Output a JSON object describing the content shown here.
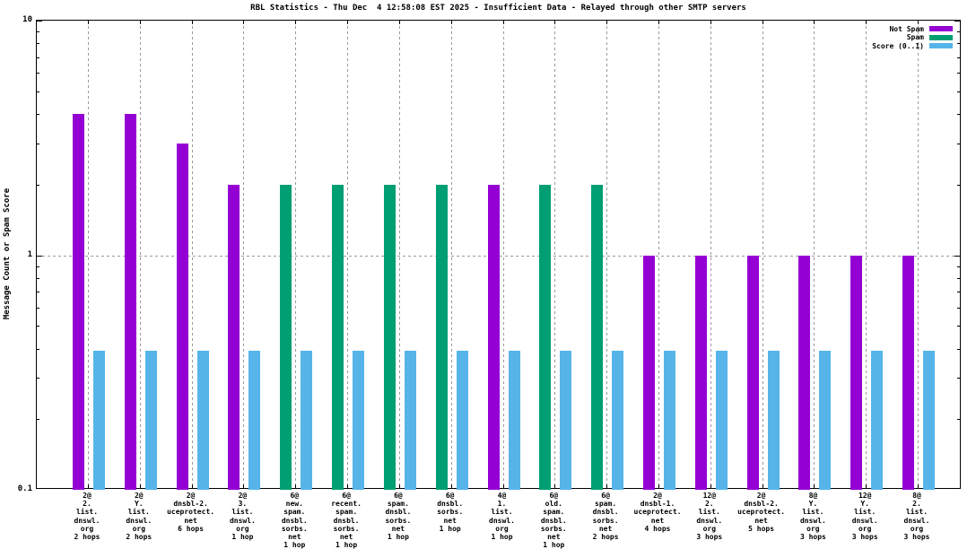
{
  "colors": {
    "not_spam": "#9400d3",
    "spam": "#009e73",
    "score": "#56b4e9",
    "grid": "#9a9a9a",
    "axis": "#000000",
    "background": "#ffffff"
  },
  "chart_data": {
    "type": "bar",
    "title": "RBL Statistics - Thu Dec  4 12:58:08 EST 2025 - Insufficient Data - Relayed through other SMTP servers",
    "xlabel": "",
    "ylabel": "Message Count or Spam Score",
    "yscale": "log",
    "ylim": [
      0.1,
      10
    ],
    "yticks": [
      10,
      1,
      0.1
    ],
    "ytick_labels": [
      "10",
      "1",
      "0.1"
    ],
    "grid_horizontal_values": [
      1
    ],
    "grid_vertical": "at each category center",
    "legend_position": "top-right",
    "legend": [
      {
        "name": "not-spam",
        "label": "Not Spam",
        "color": "#9400d3"
      },
      {
        "name": "spam",
        "label": "Spam",
        "color": "#009e73"
      },
      {
        "name": "score",
        "label": "Score (0..1)",
        "color": "#56b4e9"
      }
    ],
    "categories": [
      {
        "label_lines": [
          "2@",
          "2.",
          "list.",
          "dnswl.",
          "org",
          "2 hops"
        ],
        "series": "not_spam",
        "count": 4,
        "score": 0.39
      },
      {
        "label_lines": [
          "2@",
          "Y.",
          "list.",
          "dnswl.",
          "org",
          "2 hops"
        ],
        "series": "not_spam",
        "count": 4,
        "score": 0.39
      },
      {
        "label_lines": [
          "2@",
          "dnsbl-2.",
          "uceprotect.",
          "net",
          "6 hops"
        ],
        "series": "not_spam",
        "count": 3,
        "score": 0.39
      },
      {
        "label_lines": [
          "2@",
          "3.",
          "list.",
          "dnswl.",
          "org",
          "1 hop"
        ],
        "series": "not_spam",
        "count": 2,
        "score": 0.39
      },
      {
        "label_lines": [
          "6@",
          "new.",
          "spam.",
          "dnsbl.",
          "sorbs.",
          "net",
          "1 hop"
        ],
        "series": "spam",
        "count": 2,
        "score": 0.39
      },
      {
        "label_lines": [
          "6@",
          "recent.",
          "spam.",
          "dnsbl.",
          "sorbs.",
          "net",
          "1 hop"
        ],
        "series": "spam",
        "count": 2,
        "score": 0.39
      },
      {
        "label_lines": [
          "6@",
          "spam.",
          "dnsbl.",
          "sorbs.",
          "net",
          "1 hop"
        ],
        "series": "spam",
        "count": 2,
        "score": 0.39
      },
      {
        "label_lines": [
          "6@",
          "dnsbl.",
          "sorbs.",
          "net",
          "1 hop"
        ],
        "series": "spam",
        "count": 2,
        "score": 0.39
      },
      {
        "label_lines": [
          "4@",
          "1.",
          "list.",
          "dnswl.",
          "org",
          "1 hop"
        ],
        "series": "not_spam",
        "count": 2,
        "score": 0.39
      },
      {
        "label_lines": [
          "6@",
          "old.",
          "spam.",
          "dnsbl.",
          "sorbs.",
          "net",
          "1 hop"
        ],
        "series": "spam",
        "count": 2,
        "score": 0.39
      },
      {
        "label_lines": [
          "6@",
          "spam.",
          "dnsbl.",
          "sorbs.",
          "net",
          "2 hops"
        ],
        "series": "spam",
        "count": 2,
        "score": 0.39
      },
      {
        "label_lines": [
          "2@",
          "dnsbl-1.",
          "uceprotect.",
          "net",
          "4 hops"
        ],
        "series": "not_spam",
        "count": 1,
        "score": 0.39
      },
      {
        "label_lines": [
          "12@",
          "2.",
          "list.",
          "dnswl.",
          "org",
          "3 hops"
        ],
        "series": "not_spam",
        "count": 1,
        "score": 0.39
      },
      {
        "label_lines": [
          "2@",
          "dnsbl-2.",
          "uceprotect.",
          "net",
          "5 hops"
        ],
        "series": "not_spam",
        "count": 1,
        "score": 0.39
      },
      {
        "label_lines": [
          "8@",
          "Y.",
          "list.",
          "dnswl.",
          "org",
          "3 hops"
        ],
        "series": "not_spam",
        "count": 1,
        "score": 0.39
      },
      {
        "label_lines": [
          "12@",
          "Y.",
          "list.",
          "dnswl.",
          "org",
          "3 hops"
        ],
        "series": "not_spam",
        "count": 1,
        "score": 0.39
      },
      {
        "label_lines": [
          "8@",
          "2.",
          "list.",
          "dnswl.",
          "org",
          "3 hops"
        ],
        "series": "not_spam",
        "count": 1,
        "score": 0.39
      }
    ]
  }
}
